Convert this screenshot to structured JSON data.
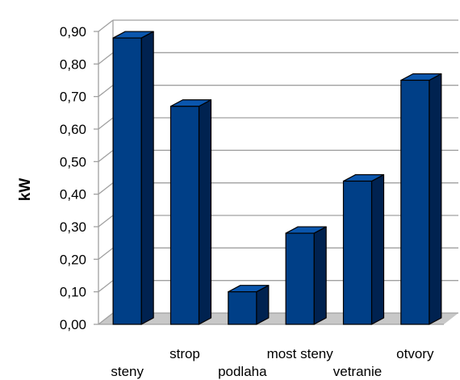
{
  "chart_data": {
    "type": "bar",
    "title": "",
    "xlabel": "",
    "ylabel": "kW",
    "ylim": [
      0,
      0.9
    ],
    "y_ticks": [
      "0,00",
      "0,10",
      "0,20",
      "0,30",
      "0,40",
      "0,50",
      "0,60",
      "0,70",
      "0,80",
      "0,90"
    ],
    "grid": true,
    "three_d": true,
    "categories": [
      "steny",
      "strop",
      "podlaha",
      "most steny",
      "vetranie",
      "otvory"
    ],
    "values": [
      0.88,
      0.67,
      0.1,
      0.28,
      0.44,
      0.75
    ],
    "colors": {
      "bar_front": "#003f87",
      "bar_side": "#002250",
      "bar_top": "#0a56ad",
      "grid": "#a0a0a0",
      "floor": "#c8c8c8"
    }
  }
}
